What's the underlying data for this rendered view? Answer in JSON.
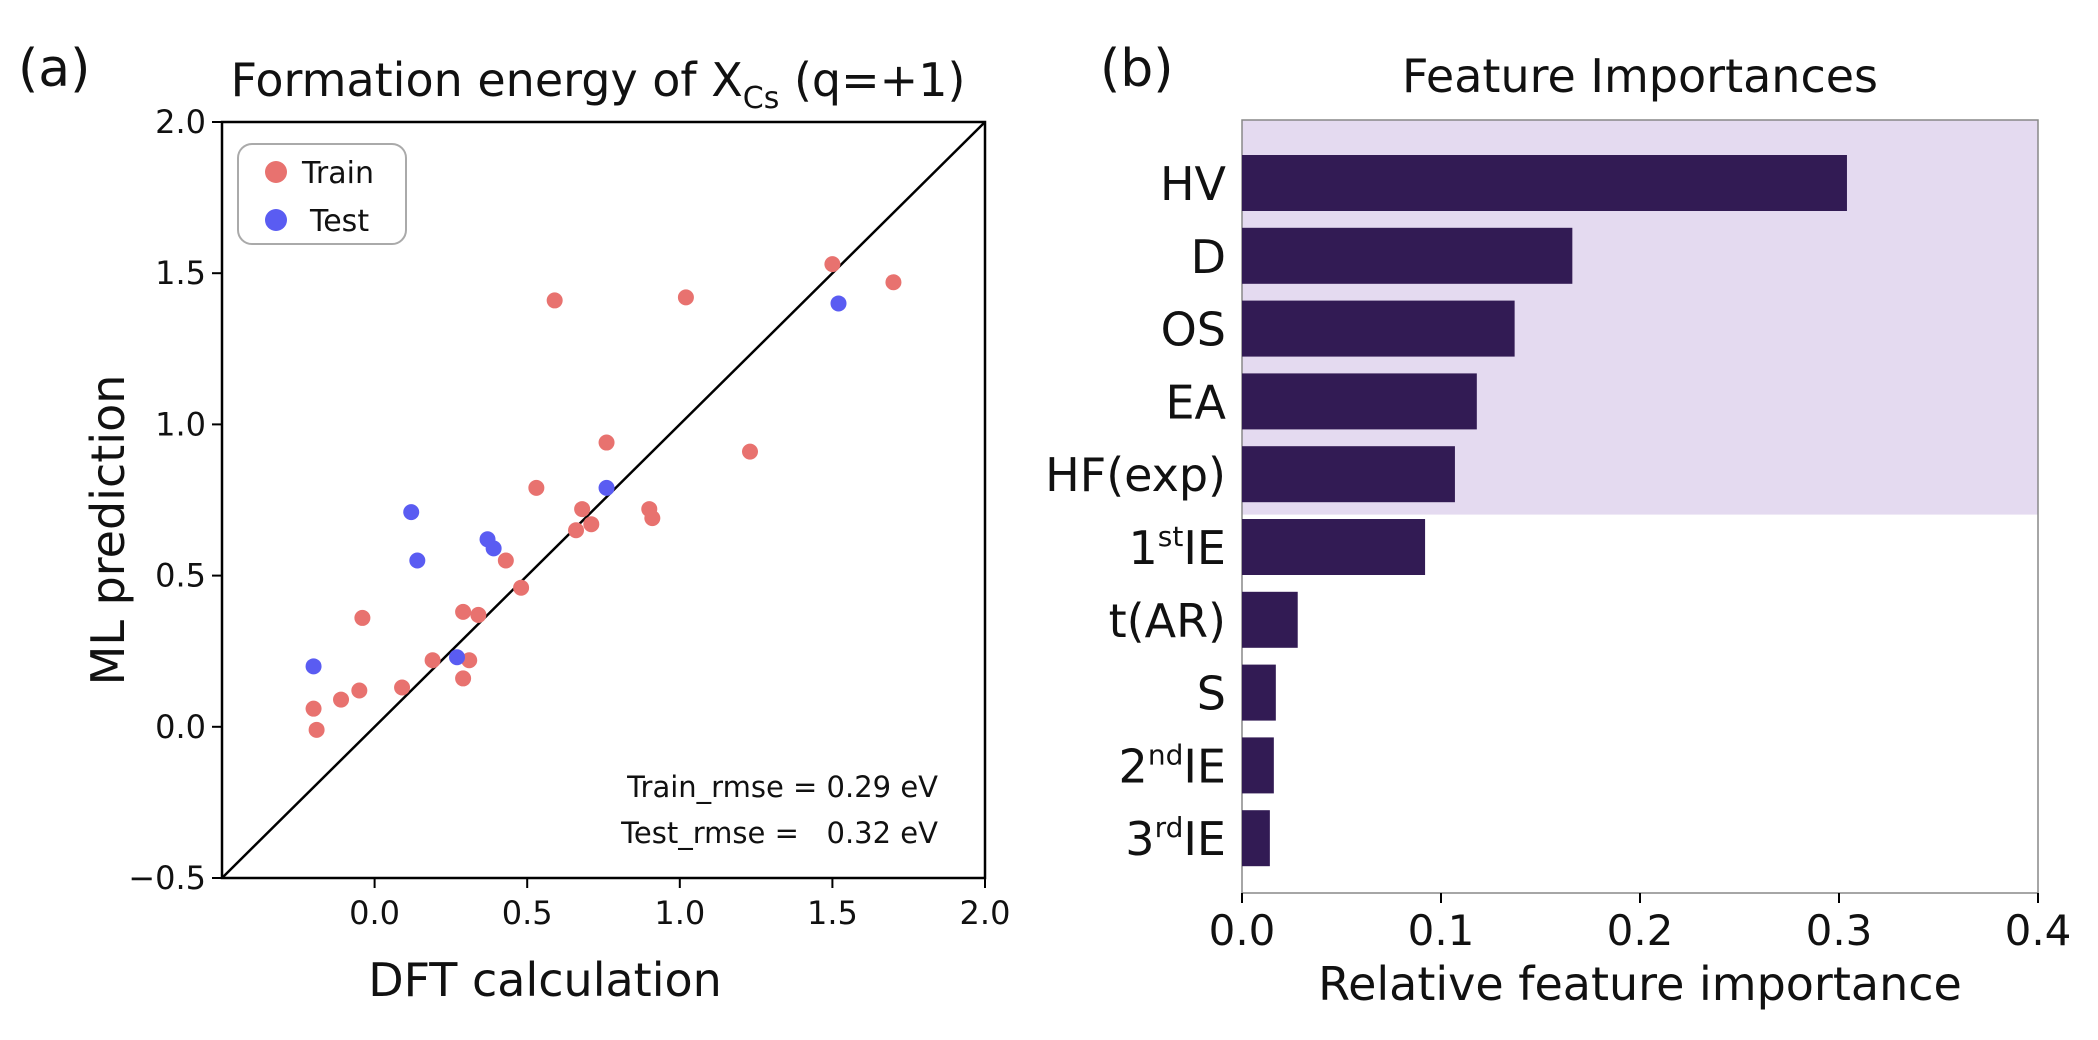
{
  "chart_data": [
    {
      "type": "scatter",
      "panel_label": "(a)",
      "title_main": "Formation energy of X",
      "title_sub": "Cs",
      "title_tail": " (q=+1)",
      "xlabel": "DFT calculation",
      "ylabel": "ML prediction",
      "xlim": [
        -0.5,
        2.0
      ],
      "ylim": [
        -0.5,
        2.0
      ],
      "xticks": [
        "0.0",
        "0.5",
        "1.0",
        "1.5",
        "2.0"
      ],
      "yticks": [
        "−0.5",
        "0.0",
        "0.5",
        "1.0",
        "1.5",
        "2.0"
      ],
      "legend": [
        {
          "label": "Train",
          "color": "#e8726f"
        },
        {
          "label": "Test",
          "color": "#5a5cf2"
        }
      ],
      "annotations": [
        "Train_rmse = 0.29 eV",
        "Test_rmse =   0.32 eV"
      ],
      "series": [
        {
          "name": "Train",
          "color": "#e8726f",
          "points": [
            [
              -0.2,
              0.06
            ],
            [
              -0.19,
              -0.01
            ],
            [
              -0.11,
              0.09
            ],
            [
              -0.05,
              0.12
            ],
            [
              -0.04,
              0.36
            ],
            [
              0.09,
              0.13
            ],
            [
              0.19,
              0.22
            ],
            [
              0.29,
              0.38
            ],
            [
              0.29,
              0.16
            ],
            [
              0.31,
              0.22
            ],
            [
              0.34,
              0.37
            ],
            [
              0.43,
              0.55
            ],
            [
              0.48,
              0.46
            ],
            [
              0.53,
              0.79
            ],
            [
              0.59,
              1.41
            ],
            [
              0.66,
              0.65
            ],
            [
              0.68,
              0.72
            ],
            [
              0.71,
              0.67
            ],
            [
              0.76,
              0.94
            ],
            [
              0.9,
              0.72
            ],
            [
              0.91,
              0.69
            ],
            [
              1.02,
              1.42
            ],
            [
              1.23,
              0.91
            ],
            [
              1.5,
              1.53
            ],
            [
              1.7,
              1.47
            ]
          ]
        },
        {
          "name": "Test",
          "color": "#5a5cf2",
          "points": [
            [
              -0.2,
              0.2
            ],
            [
              0.12,
              0.71
            ],
            [
              0.14,
              0.55
            ],
            [
              0.27,
              0.23
            ],
            [
              0.37,
              0.62
            ],
            [
              0.39,
              0.59
            ],
            [
              0.76,
              0.79
            ],
            [
              1.52,
              1.4
            ]
          ]
        }
      ]
    },
    {
      "type": "bar",
      "orientation": "horizontal",
      "panel_label": "(b)",
      "title": "Feature Importances",
      "xlabel": "Relative feature importance",
      "xlim": [
        0.0,
        0.4
      ],
      "xticks": [
        "0.0",
        "0.1",
        "0.2",
        "0.3",
        "0.4"
      ],
      "bar_color": "#321b54",
      "highlight_color": "#e4daf0",
      "highlight_top_n": 5,
      "categories": [
        {
          "base": "HV",
          "sup": "",
          "tail": ""
        },
        {
          "base": "D",
          "sup": "",
          "tail": ""
        },
        {
          "base": "OS",
          "sup": "",
          "tail": ""
        },
        {
          "base": "EA",
          "sup": "",
          "tail": ""
        },
        {
          "base": "HF(exp)",
          "sup": "",
          "tail": ""
        },
        {
          "base": "1",
          "sup": "st",
          "tail": "IE"
        },
        {
          "base": "t(AR)",
          "sup": "",
          "tail": ""
        },
        {
          "base": "S",
          "sup": "",
          "tail": ""
        },
        {
          "base": "2",
          "sup": "nd",
          "tail": "IE"
        },
        {
          "base": "3",
          "sup": "rd",
          "tail": "IE"
        }
      ],
      "values": [
        0.304,
        0.166,
        0.137,
        0.118,
        0.107,
        0.092,
        0.028,
        0.017,
        0.016,
        0.014
      ]
    }
  ]
}
